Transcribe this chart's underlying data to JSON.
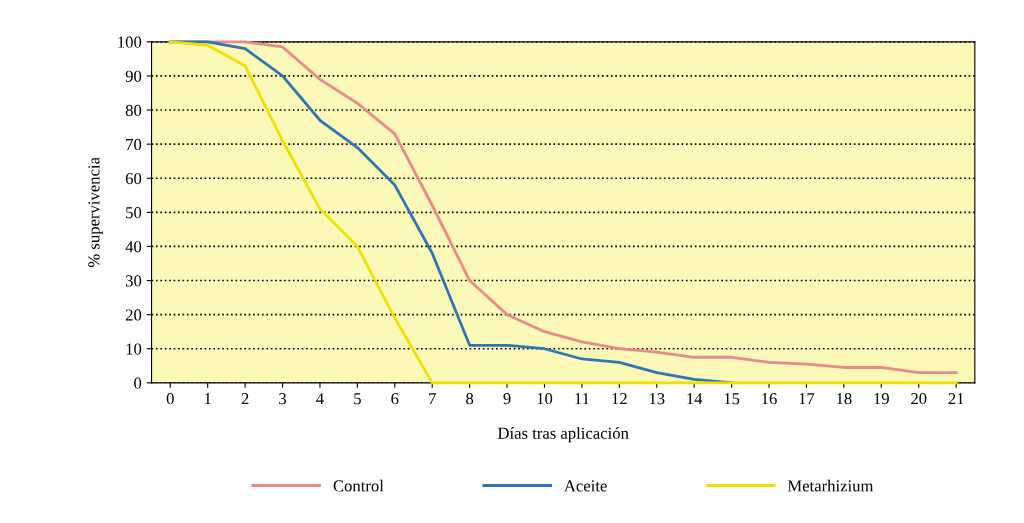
{
  "chart_data": {
    "type": "line",
    "xlabel": "Días tras aplicación",
    "ylabel": "% supervivencia",
    "categories": [
      "0",
      "1",
      "2",
      "3",
      "4",
      "5",
      "6",
      "7",
      "8",
      "9",
      "10",
      "11",
      "12",
      "13",
      "14",
      "15",
      "16",
      "17",
      "18",
      "19",
      "20",
      "21"
    ],
    "series": [
      {
        "name": "Control",
        "color": "#e88a8a",
        "values": [
          100,
          100,
          100,
          98.5,
          89,
          82,
          73,
          52,
          30,
          20,
          15,
          12,
          10,
          9,
          7.5,
          7.5,
          6,
          5.5,
          4.5,
          4.5,
          3,
          3
        ]
      },
      {
        "name": "Aceite",
        "color": "#2e75b6",
        "values": [
          100,
          100,
          98,
          90,
          77,
          69,
          58,
          38,
          11,
          11,
          10,
          7,
          6,
          3,
          1,
          0,
          null,
          null,
          null,
          null,
          null,
          null
        ]
      },
      {
        "name": "Metarhizium",
        "color": "#f0e000",
        "values": [
          100,
          99,
          93,
          71,
          51,
          40,
          19,
          0,
          0,
          0,
          0,
          0,
          0,
          0,
          0,
          0,
          0,
          0,
          0,
          0,
          0,
          0
        ]
      }
    ],
    "ylim": [
      0,
      100
    ],
    "yticks": [
      0,
      10,
      20,
      30,
      40,
      50,
      60,
      70,
      80,
      90,
      100
    ],
    "grid": "y",
    "legend": "bottom",
    "marker": "none",
    "line_style": "solid"
  }
}
